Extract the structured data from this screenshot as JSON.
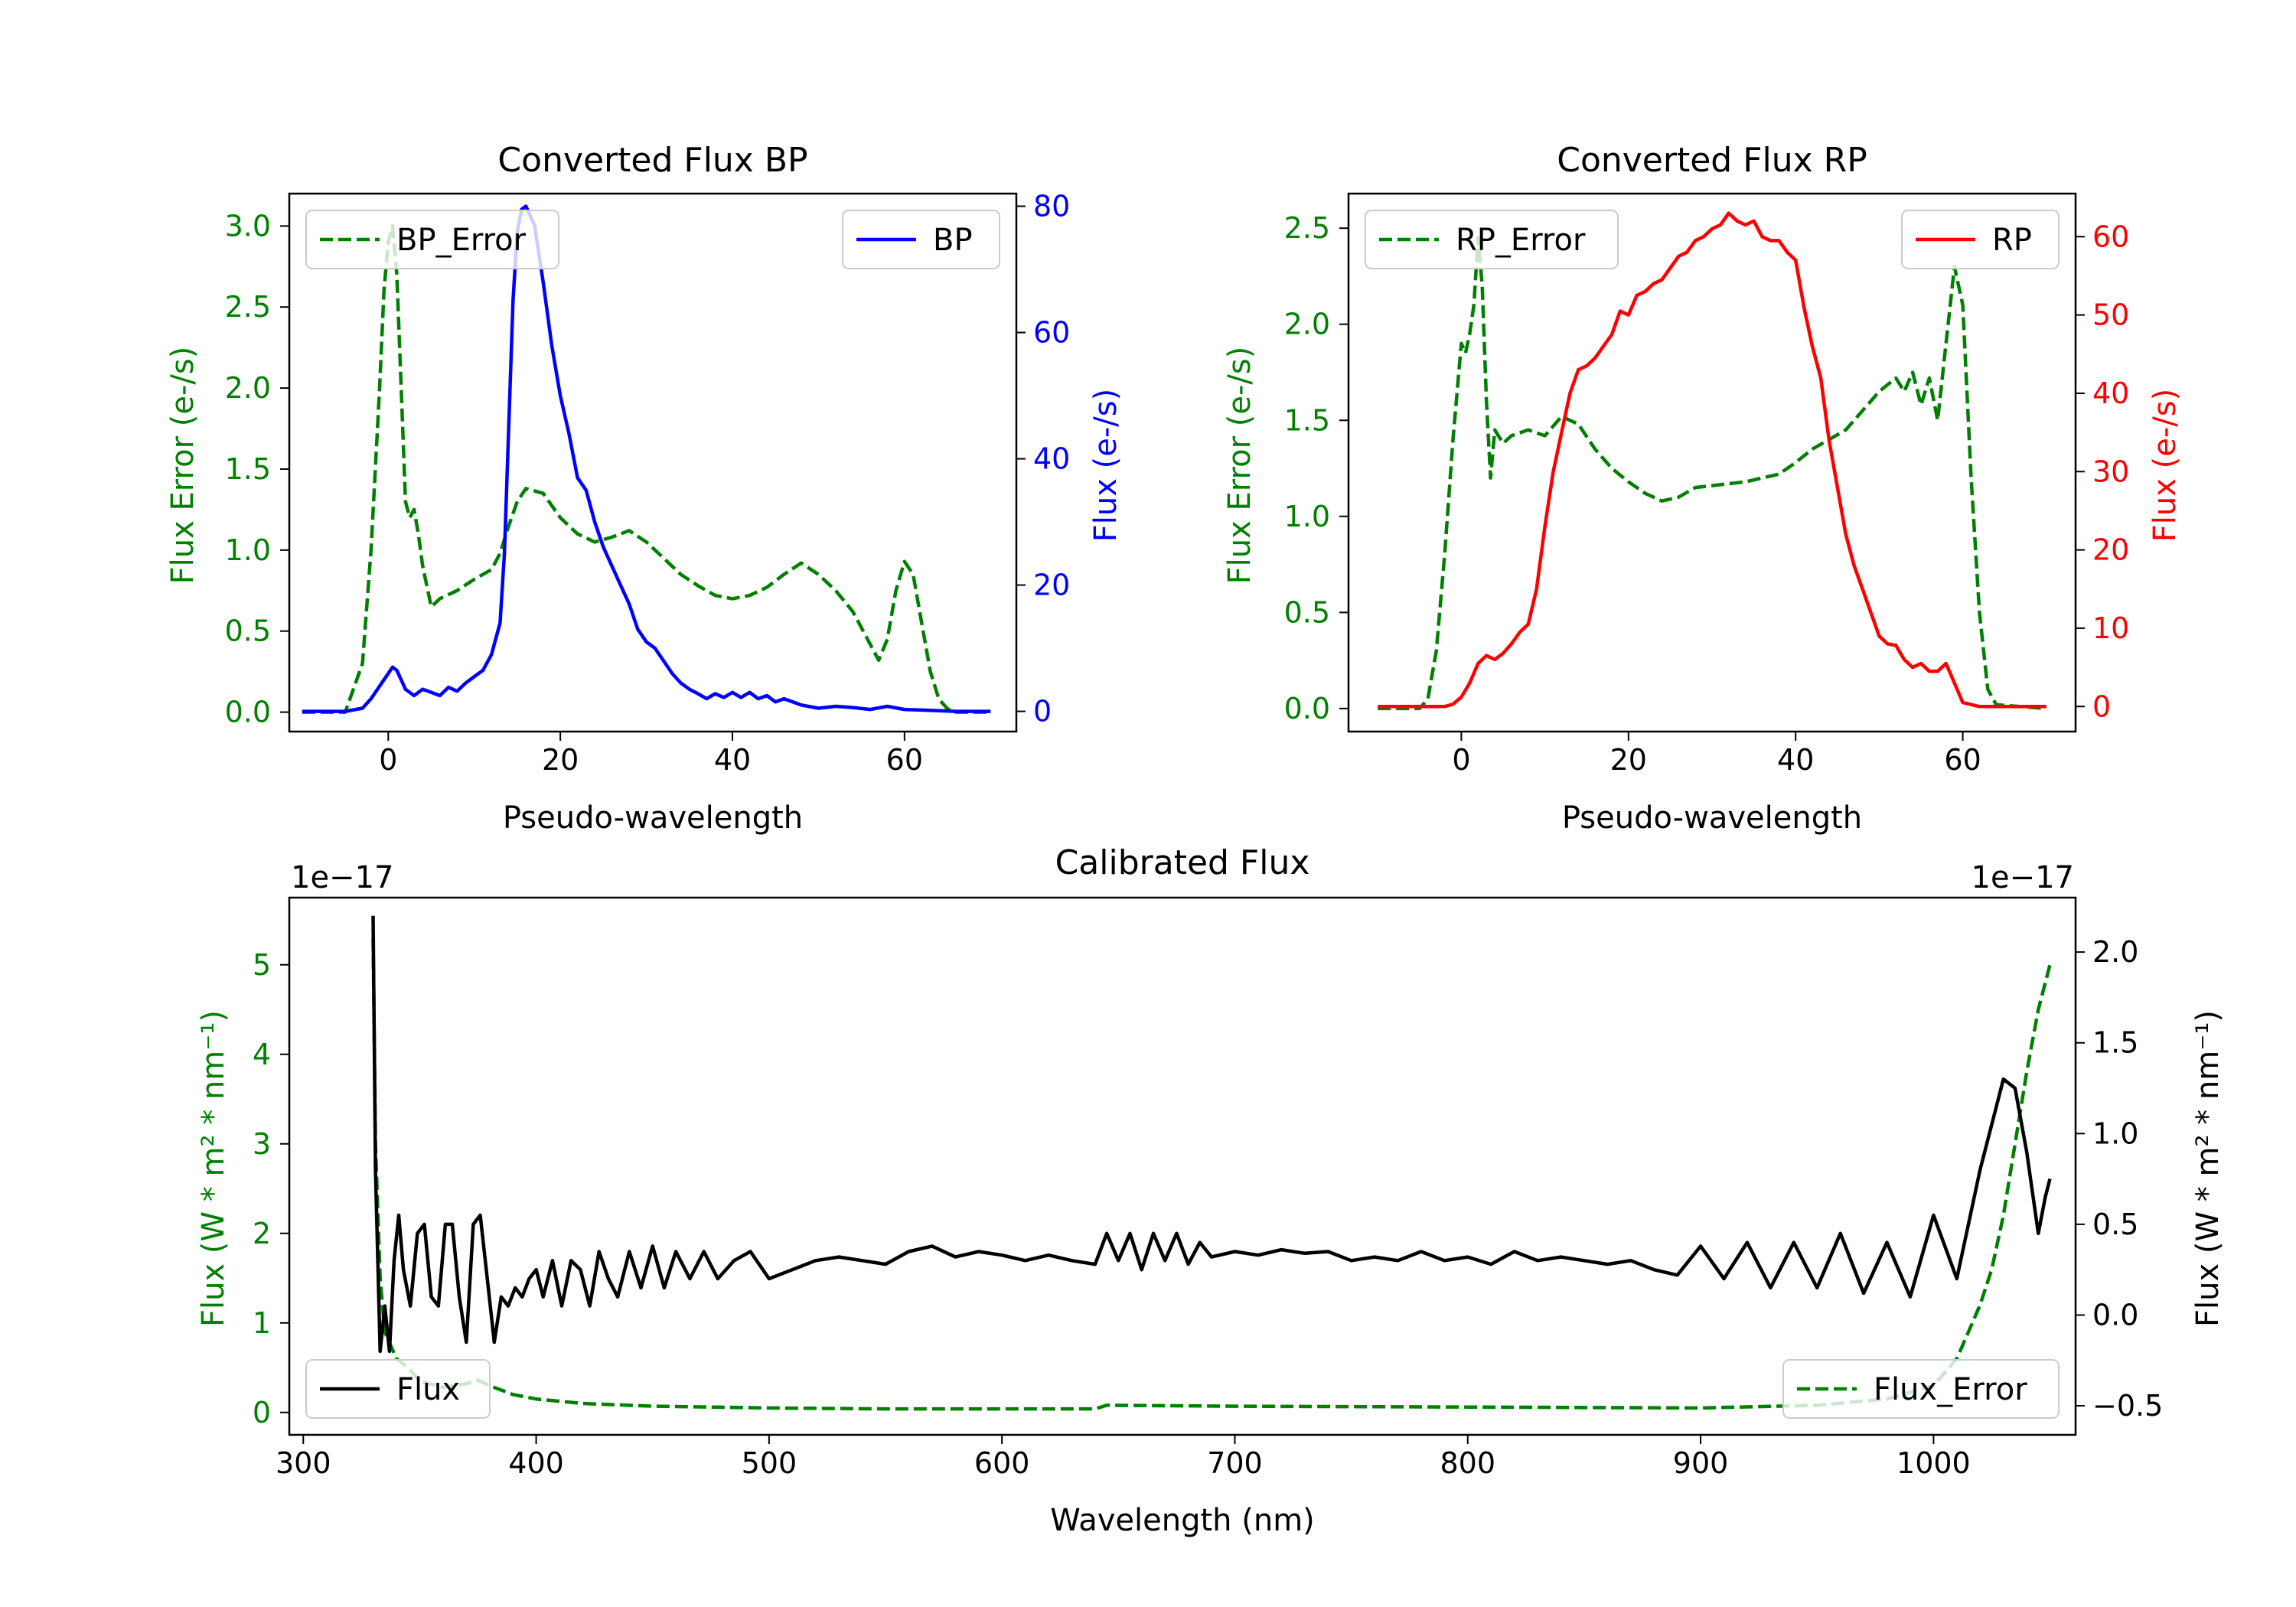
{
  "chart_data": [
    {
      "type": "line",
      "title": "Converted Flux BP",
      "xlabel": "Pseudo-wavelength",
      "ylabel_left": "Flux Error (e-/s)",
      "ylabel_right": "Flux (e-/s)",
      "xlim": [
        -11.5,
        73
      ],
      "ylim_left": [
        -0.12,
        3.2
      ],
      "ylim_right": [
        -3.2,
        82
      ],
      "xticks": [
        0,
        20,
        40,
        60
      ],
      "yticks_left": [
        0.0,
        0.5,
        1.0,
        1.5,
        2.0,
        2.5,
        3.0
      ],
      "yticks_right": [
        0,
        20,
        40,
        60,
        80
      ],
      "color_left": "#008000",
      "color_right": "#0000ff",
      "series": [
        {
          "name": "BP_Error",
          "axis": "left",
          "style": "dashed",
          "color": "#008000",
          "x": [
            -10,
            -5,
            -3,
            -2,
            -1,
            -0.5,
            0,
            0.5,
            1,
            1.5,
            2,
            2.5,
            3,
            3.5,
            4,
            5,
            6,
            8,
            10,
            12,
            13,
            14,
            15,
            16,
            18,
            20,
            22,
            24,
            26,
            28,
            30,
            32,
            34,
            36,
            38,
            40,
            42,
            44,
            46,
            48,
            50,
            52,
            54,
            56,
            57,
            58,
            59,
            60,
            61,
            62,
            63,
            64,
            65,
            66,
            70
          ],
          "values": [
            0.0,
            0.0,
            0.3,
            1.0,
            2.0,
            2.6,
            2.9,
            3.0,
            2.7,
            2.0,
            1.3,
            1.2,
            1.25,
            1.1,
            0.9,
            0.65,
            0.7,
            0.75,
            0.82,
            0.88,
            0.98,
            1.15,
            1.3,
            1.38,
            1.35,
            1.2,
            1.1,
            1.05,
            1.08,
            1.12,
            1.05,
            0.95,
            0.85,
            0.78,
            0.72,
            0.7,
            0.72,
            0.77,
            0.85,
            0.92,
            0.85,
            0.75,
            0.62,
            0.42,
            0.32,
            0.45,
            0.75,
            0.93,
            0.85,
            0.55,
            0.25,
            0.08,
            0.02,
            0.0,
            0.0
          ]
        },
        {
          "name": "BP",
          "axis": "right",
          "style": "solid",
          "color": "#0000ff",
          "x": [
            -10,
            -5,
            -3,
            -2,
            -1,
            0,
            0.5,
            1,
            1.5,
            2,
            3,
            4,
            5,
            6,
            7,
            8,
            9,
            10,
            11,
            12,
            13,
            13.5,
            14,
            14.5,
            15,
            15.5,
            16,
            17,
            18,
            19,
            20,
            21,
            22,
            23,
            24,
            25,
            26,
            27,
            28,
            29,
            30,
            31,
            32,
            33,
            34,
            35,
            36,
            37,
            38,
            39,
            40,
            41,
            42,
            43,
            44,
            45,
            46,
            48,
            50,
            52,
            54,
            56,
            58,
            60,
            62,
            66,
            70
          ],
          "values": [
            0,
            0,
            0.5,
            2,
            4,
            6,
            7,
            6.5,
            5,
            3.5,
            2.5,
            3.5,
            3,
            2.5,
            3.8,
            3.2,
            4.5,
            5.5,
            6.5,
            9,
            14,
            25,
            45,
            65,
            76,
            79.5,
            80,
            77,
            68,
            58,
            50,
            44,
            37,
            35,
            30,
            26,
            23,
            20,
            17,
            13,
            11,
            10,
            8,
            6,
            4.5,
            3.5,
            2.8,
            2,
            2.8,
            2.2,
            3,
            2.2,
            3,
            2,
            2.5,
            1.5,
            2,
            1,
            0.5,
            0.8,
            0.6,
            0.3,
            0.8,
            0.3,
            0.2,
            0,
            0
          ]
        }
      ],
      "legend": [
        {
          "label": "BP_Error",
          "position": "upper-left"
        },
        {
          "label": "BP",
          "position": "upper-right"
        }
      ]
    },
    {
      "type": "line",
      "title": "Converted Flux RP",
      "xlabel": "Pseudo-wavelength",
      "ylabel_left": "Flux Error (e-/s)",
      "ylabel_right": "Flux (e-/s)",
      "xlim": [
        -13.5,
        73.5
      ],
      "ylim_left": [
        -0.12,
        2.68
      ],
      "ylim_right": [
        -3.2,
        65.5
      ],
      "xticks": [
        0,
        20,
        40,
        60
      ],
      "yticks_left": [
        0.0,
        0.5,
        1.0,
        1.5,
        2.0,
        2.5
      ],
      "yticks_right": [
        0,
        10,
        20,
        30,
        40,
        50,
        60
      ],
      "color_left": "#008000",
      "color_right": "#ff0000",
      "series": [
        {
          "name": "RP_Error",
          "axis": "left",
          "style": "dashed",
          "color": "#008000",
          "x": [
            -10,
            -5,
            -4,
            -3,
            -2,
            -1,
            0,
            0.5,
            1,
            1.5,
            2,
            2.5,
            3,
            3.5,
            4,
            5,
            6,
            8,
            10,
            12,
            14,
            16,
            18,
            20,
            22,
            24,
            26,
            28,
            30,
            32,
            34,
            36,
            38,
            40,
            42,
            44,
            46,
            48,
            50,
            52,
            53,
            54,
            55,
            56,
            57,
            58,
            59,
            60,
            61,
            62,
            63,
            64,
            70
          ],
          "values": [
            0.0,
            0.0,
            0.05,
            0.3,
            0.8,
            1.4,
            1.9,
            1.85,
            1.95,
            2.1,
            2.45,
            2.2,
            1.6,
            1.2,
            1.45,
            1.38,
            1.42,
            1.45,
            1.42,
            1.52,
            1.48,
            1.35,
            1.25,
            1.18,
            1.12,
            1.08,
            1.1,
            1.15,
            1.16,
            1.17,
            1.18,
            1.2,
            1.22,
            1.28,
            1.35,
            1.4,
            1.45,
            1.55,
            1.65,
            1.72,
            1.65,
            1.75,
            1.58,
            1.72,
            1.5,
            1.9,
            2.3,
            2.1,
            1.2,
            0.5,
            0.1,
            0.02,
            0.0
          ]
        },
        {
          "name": "RP",
          "axis": "right",
          "style": "solid",
          "color": "#ff0000",
          "x": [
            -10,
            -3,
            -2,
            -1,
            0,
            1,
            2,
            3,
            4,
            5,
            6,
            7,
            8,
            9,
            10,
            11,
            12,
            13,
            14,
            15,
            16,
            17,
            18,
            19,
            20,
            21,
            22,
            23,
            24,
            25,
            26,
            27,
            28,
            29,
            30,
            31,
            32,
            33,
            34,
            35,
            36,
            37,
            38,
            39,
            40,
            41,
            42,
            43,
            44,
            45,
            46,
            47,
            48,
            49,
            50,
            51,
            52,
            53,
            54,
            55,
            56,
            57,
            58,
            59,
            60,
            62,
            70
          ],
          "values": [
            0,
            0,
            0,
            0.3,
            1.2,
            3,
            5.5,
            6.5,
            6,
            6.8,
            8,
            9.5,
            10.5,
            15,
            23,
            30,
            35,
            40,
            43,
            43.5,
            44.5,
            46,
            47.5,
            50.5,
            50,
            52.5,
            53,
            54,
            54.5,
            56,
            57.5,
            58,
            59.5,
            60,
            61,
            61.5,
            63,
            62,
            61.5,
            62,
            60,
            59.5,
            59.5,
            58,
            57,
            51,
            46,
            42,
            34,
            28,
            22,
            18,
            15,
            12,
            9,
            8,
            7.8,
            6,
            5,
            5.5,
            4.5,
            4.5,
            5.5,
            3,
            0.5,
            0,
            0
          ]
        }
      ],
      "legend": [
        {
          "label": "RP_Error",
          "position": "upper-left"
        },
        {
          "label": "RP",
          "position": "upper-right"
        }
      ]
    },
    {
      "type": "line",
      "title": "Calibrated Flux",
      "xlabel": "Wavelength (nm)",
      "ylabel_left": "Flux (W * m² * nm⁻¹)",
      "ylabel_right": "Flux (W * m² * nm⁻¹)",
      "offset_left": "1e−17",
      "offset_right": "1e−17",
      "xlim": [
        294,
        1061
      ],
      "ylim_left": [
        -0.25,
        5.75
      ],
      "ylim_right": [
        -0.66,
        2.3
      ],
      "xticks": [
        300,
        400,
        500,
        600,
        700,
        800,
        900,
        1000
      ],
      "yticks_left": [
        0,
        1,
        2,
        3,
        4,
        5
      ],
      "yticks_right": [
        -0.5,
        0.0,
        0.5,
        1.0,
        1.5,
        2.0
      ],
      "ytick_labels_right": [
        "−0.5",
        "0.0",
        "0.5",
        "1.0",
        "1.5",
        "2.0"
      ],
      "color_left": "#008000",
      "color_right": "#000000",
      "series": [
        {
          "name": "Flux_Error",
          "axis": "left",
          "style": "dashed",
          "color": "#008000",
          "x": [
            330,
            331,
            333,
            335,
            340,
            345,
            350,
            360,
            370,
            375,
            380,
            390,
            400,
            420,
            450,
            500,
            550,
            600,
            640,
            645,
            700,
            800,
            900,
            950,
            980,
            1000,
            1010,
            1015,
            1020,
            1025,
            1030,
            1035,
            1040,
            1045,
            1050
          ],
          "values": [
            5.3,
            3.0,
            1.5,
            0.9,
            0.6,
            0.5,
            0.35,
            0.28,
            0.32,
            0.36,
            0.3,
            0.2,
            0.15,
            0.1,
            0.07,
            0.05,
            0.04,
            0.04,
            0.04,
            0.08,
            0.07,
            0.06,
            0.05,
            0.08,
            0.15,
            0.3,
            0.6,
            0.9,
            1.2,
            1.6,
            2.2,
            3.0,
            3.8,
            4.5,
            5.0
          ]
        },
        {
          "name": "Flux",
          "axis": "right",
          "style": "solid",
          "color": "#000000",
          "x": [
            330,
            331,
            333,
            335,
            337,
            339,
            341,
            343,
            346,
            349,
            352,
            355,
            358,
            361,
            364,
            367,
            370,
            373,
            376,
            379,
            382,
            385,
            388,
            391,
            394,
            397,
            400,
            403,
            407,
            411,
            415,
            419,
            423,
            427,
            431,
            435,
            440,
            445,
            450,
            455,
            460,
            466,
            472,
            478,
            485,
            492,
            500,
            510,
            520,
            530,
            540,
            550,
            560,
            570,
            580,
            590,
            600,
            610,
            620,
            630,
            640,
            645,
            650,
            655,
            660,
            665,
            670,
            675,
            680,
            685,
            690,
            700,
            710,
            720,
            730,
            740,
            750,
            760,
            770,
            780,
            790,
            800,
            810,
            820,
            830,
            840,
            850,
            860,
            870,
            880,
            890,
            900,
            910,
            920,
            930,
            940,
            950,
            960,
            970,
            980,
            990,
            1000,
            1010,
            1020,
            1030,
            1035,
            1040,
            1045,
            1048,
            1050
          ],
          "values": [
            2.2,
            0.8,
            -0.2,
            0.05,
            -0.2,
            0.3,
            0.55,
            0.25,
            0.05,
            0.45,
            0.5,
            0.1,
            0.05,
            0.5,
            0.5,
            0.1,
            -0.15,
            0.5,
            0.55,
            0.2,
            -0.15,
            0.1,
            0.05,
            0.15,
            0.1,
            0.2,
            0.25,
            0.1,
            0.3,
            0.05,
            0.3,
            0.25,
            0.05,
            0.35,
            0.2,
            0.1,
            0.35,
            0.15,
            0.38,
            0.15,
            0.35,
            0.2,
            0.35,
            0.2,
            0.3,
            0.35,
            0.2,
            0.25,
            0.3,
            0.32,
            0.3,
            0.28,
            0.35,
            0.38,
            0.32,
            0.35,
            0.33,
            0.3,
            0.33,
            0.3,
            0.28,
            0.45,
            0.3,
            0.45,
            0.25,
            0.45,
            0.3,
            0.45,
            0.28,
            0.4,
            0.32,
            0.35,
            0.33,
            0.36,
            0.34,
            0.35,
            0.3,
            0.32,
            0.3,
            0.35,
            0.3,
            0.32,
            0.28,
            0.35,
            0.3,
            0.32,
            0.3,
            0.28,
            0.3,
            0.25,
            0.22,
            0.38,
            0.2,
            0.4,
            0.15,
            0.4,
            0.15,
            0.45,
            0.12,
            0.4,
            0.1,
            0.55,
            0.2,
            0.8,
            1.3,
            1.25,
            0.9,
            0.45,
            0.65,
            0.75
          ]
        }
      ],
      "legend": [
        {
          "label": "Flux",
          "position": "lower-left"
        },
        {
          "label": "Flux_Error",
          "position": "lower-right"
        }
      ]
    }
  ]
}
